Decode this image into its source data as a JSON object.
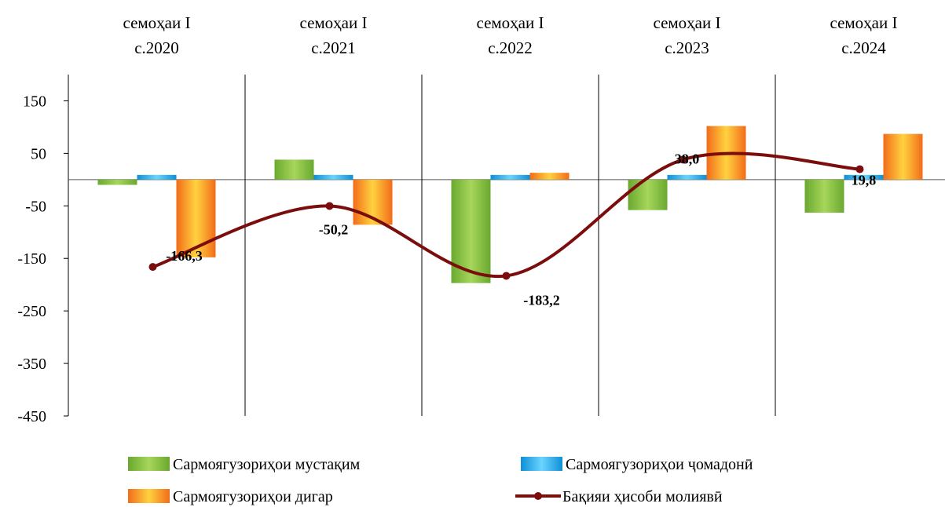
{
  "chart_data": {
    "type": "bar",
    "categories": [
      [
        "семоҳаи I",
        "с.2020"
      ],
      [
        "семоҳаи I",
        "с.2021"
      ],
      [
        "семоҳаи I",
        "с.2022"
      ],
      [
        "семоҳаи I",
        "с.2023"
      ],
      [
        "семоҳаи I",
        "с.2024"
      ]
    ],
    "series": [
      {
        "name": "Сармоягузориҳои мустақим",
        "kind": "bar",
        "color": "#8cc63f",
        "values": [
          -10,
          38,
          -197,
          -58,
          -63
        ]
      },
      {
        "name": "Сармоягузориҳои ҷомадонӣ",
        "kind": "bar",
        "color": "#29b6f6",
        "values": [
          8,
          8,
          8,
          8,
          8
        ]
      },
      {
        "name": "Сармоягузориҳои дигар",
        "kind": "bar",
        "color": "#f7941d",
        "values": [
          -148,
          -86,
          13,
          102,
          87
        ]
      },
      {
        "name": "Бақияи ҳисоби молиявӣ",
        "kind": "line",
        "color": "#7b0d0d",
        "values": [
          -166.3,
          -50.2,
          -183.2,
          38.0,
          19.8
        ],
        "labels": [
          "-166,3",
          "-50,2",
          "-183,2",
          "38,0",
          "19,8"
        ]
      }
    ],
    "ylim": [
      -450,
      200
    ],
    "yticks": [
      150,
      50,
      -50,
      -150,
      -250,
      -350,
      -450
    ],
    "xlabel": "",
    "ylabel": "",
    "title": "",
    "grid": false,
    "legend_position": "bottom"
  }
}
